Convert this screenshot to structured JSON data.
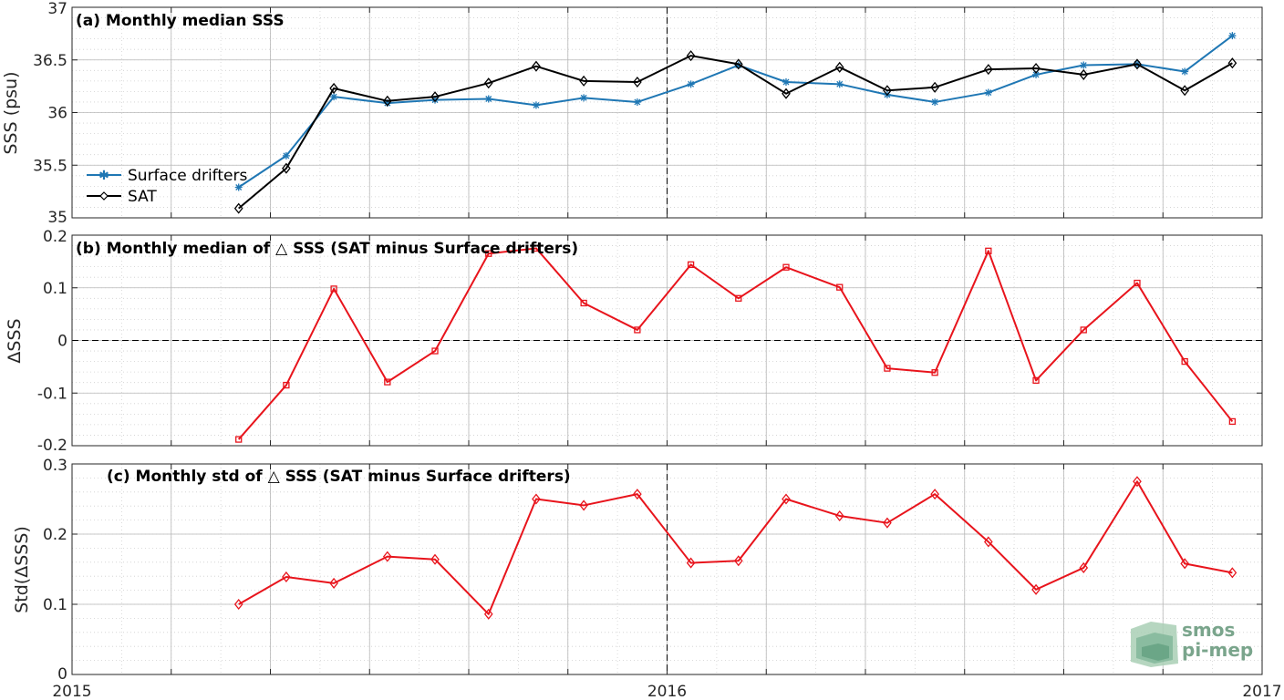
{
  "colors": {
    "drifters": "#1f77b4",
    "sat": "#000000",
    "delta": "#e8141c",
    "logo": "#7aa58c"
  },
  "x_ticks": [
    {
      "x": 2015,
      "label": "2015"
    },
    {
      "x": 2016,
      "label": "2016"
    },
    {
      "x": 2017,
      "label": "2017"
    }
  ],
  "chart_data": [
    {
      "type": "line",
      "title": "(a) Monthly median SSS",
      "ylabel": "SSS (psu)",
      "xlim": [
        2015,
        2017
      ],
      "ylim": [
        35,
        37
      ],
      "y_ticks": [
        {
          "v": 35,
          "label": "35"
        },
        {
          "v": 35.5,
          "label": "35.5"
        },
        {
          "v": 36,
          "label": "36"
        },
        {
          "v": 36.5,
          "label": "36.5"
        },
        {
          "v": 37,
          "label": "37"
        }
      ],
      "legend": "left",
      "x": [
        2015.28,
        2015.36,
        2015.44,
        2015.53,
        2015.61,
        2015.7,
        2015.78,
        2015.86,
        2015.95,
        2016.04,
        2016.12,
        2016.2,
        2016.29,
        2016.37,
        2016.45,
        2016.54,
        2016.62,
        2016.7,
        2016.79,
        2016.87,
        2016.95
      ],
      "series": [
        {
          "name": "Surface drifters",
          "color": "#1f77b4",
          "marker": "asterisk",
          "values": [
            35.29,
            35.59,
            36.15,
            36.09,
            36.12,
            36.13,
            36.07,
            36.14,
            36.1,
            36.27,
            36.45,
            36.29,
            36.27,
            36.17,
            36.1,
            36.19,
            36.36,
            36.45,
            36.46,
            36.39,
            36.73
          ]
        },
        {
          "name": "SAT",
          "color": "#000000",
          "marker": "diamond",
          "values": [
            35.09,
            35.47,
            36.23,
            36.11,
            36.15,
            36.28,
            36.44,
            36.3,
            36.29,
            36.54,
            36.46,
            36.18,
            36.43,
            36.21,
            36.24,
            36.41,
            36.42,
            36.36,
            36.46,
            36.21,
            36.47
          ]
        }
      ],
      "vline_x": 2016
    },
    {
      "type": "line",
      "title": "(b) Monthly median of △ SSS (SAT minus Surface drifters)",
      "ylabel": "ΔSSS",
      "xlim": [
        2015,
        2017
      ],
      "ylim": [
        -0.2,
        0.2
      ],
      "y_ticks": [
        {
          "v": -0.2,
          "label": "-0.2"
        },
        {
          "v": -0.1,
          "label": "-0.1"
        },
        {
          "v": 0,
          "label": "0"
        },
        {
          "v": 0.1,
          "label": "0.1"
        },
        {
          "v": 0.2,
          "label": "0.2"
        }
      ],
      "hline_y": 0,
      "x": [
        2015.28,
        2015.36,
        2015.44,
        2015.53,
        2015.61,
        2015.7,
        2015.78,
        2015.86,
        2015.95,
        2016.04,
        2016.12,
        2016.2,
        2016.29,
        2016.37,
        2016.45,
        2016.54,
        2016.62,
        2016.7,
        2016.79,
        2016.87,
        2016.95
      ],
      "series": [
        {
          "color": "#e8141c",
          "marker": "square",
          "values": [
            -0.188,
            -0.085,
            0.098,
            -0.079,
            -0.02,
            0.165,
            0.175,
            0.071,
            0.02,
            0.144,
            0.08,
            0.139,
            0.101,
            -0.053,
            -0.061,
            0.17,
            -0.076,
            0.02,
            0.109,
            -0.04,
            -0.154
          ]
        }
      ]
    },
    {
      "type": "line",
      "title": "(c) Monthly std of △ SSS (SAT minus Surface drifters)",
      "ylabel": "Std(ΔSSS)",
      "xlim": [
        2015,
        2017
      ],
      "ylim": [
        0,
        0.3
      ],
      "y_ticks": [
        {
          "v": 0,
          "label": "0"
        },
        {
          "v": 0.1,
          "label": "0.1"
        },
        {
          "v": 0.2,
          "label": "0.2"
        },
        {
          "v": 0.3,
          "label": "0.3"
        }
      ],
      "x": [
        2015.28,
        2015.36,
        2015.44,
        2015.53,
        2015.61,
        2015.7,
        2015.78,
        2015.86,
        2015.95,
        2016.04,
        2016.12,
        2016.2,
        2016.29,
        2016.37,
        2016.45,
        2016.54,
        2016.62,
        2016.7,
        2016.79,
        2016.87,
        2016.95
      ],
      "series": [
        {
          "color": "#e8141c",
          "marker": "diamond",
          "values": [
            0.1,
            0.139,
            0.13,
            0.168,
            0.164,
            0.086,
            0.25,
            0.241,
            0.257,
            0.159,
            0.162,
            0.25,
            0.226,
            0.216,
            0.257,
            0.189,
            0.121,
            0.152,
            0.275,
            0.158,
            0.145
          ]
        }
      ],
      "vline_x": 2016
    }
  ],
  "logo": {
    "line1": "smos",
    "line2": "pi-mep"
  }
}
